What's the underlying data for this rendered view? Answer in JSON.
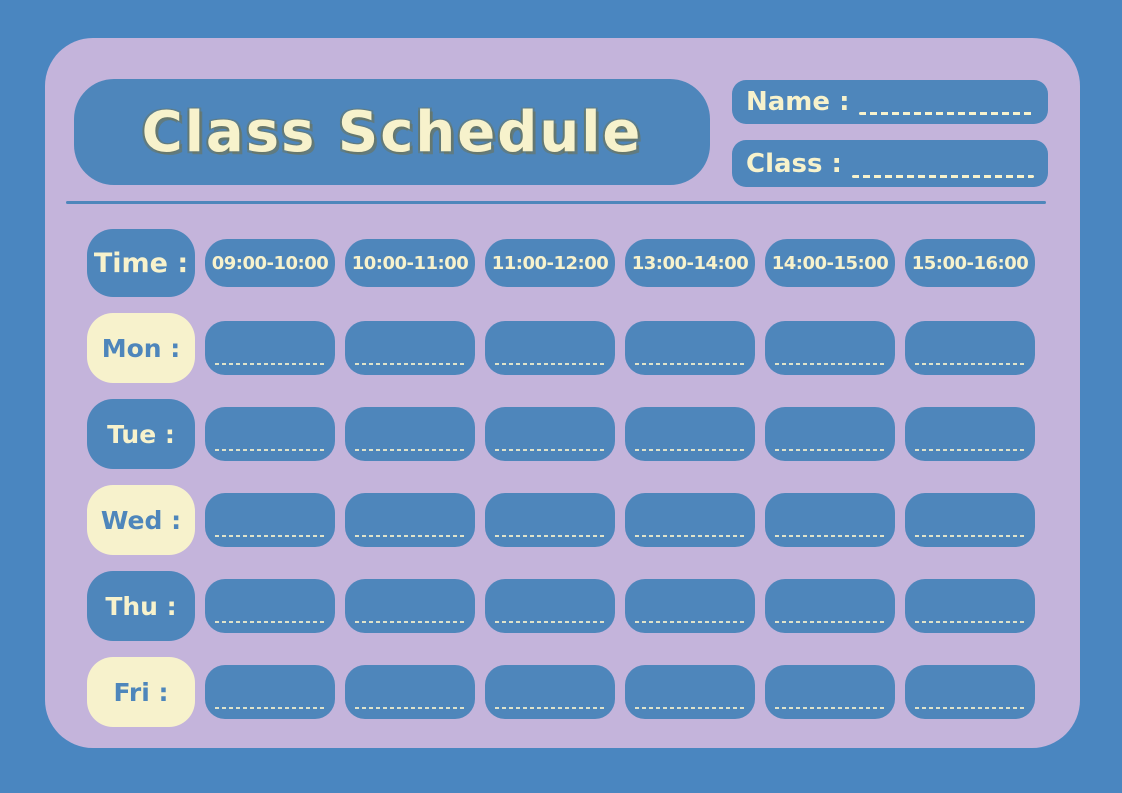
{
  "theme": {
    "background_blue": "#4A86C0",
    "box_blue": "#4E86BB",
    "card_lavender": "#C4B4DB",
    "cream": "#F7F2CC",
    "title_shadow": "#6F7352"
  },
  "header": {
    "title": "Class Schedule",
    "name_label": "Name :",
    "class_label": "Class :"
  },
  "schedule": {
    "time_label": "Time :",
    "time_slots": [
      "09:00-10:00",
      "10:00-11:00",
      "11:00-12:00",
      "13:00-14:00",
      "14:00-15:00",
      "15:00-16:00"
    ],
    "days": [
      {
        "label": "Mon :",
        "variant": "cream"
      },
      {
        "label": "Tue :",
        "variant": "blue"
      },
      {
        "label": "Wed :",
        "variant": "cream"
      },
      {
        "label": "Thu :",
        "variant": "blue"
      },
      {
        "label": "Fri :",
        "variant": "cream"
      }
    ],
    "cell_value": ""
  }
}
